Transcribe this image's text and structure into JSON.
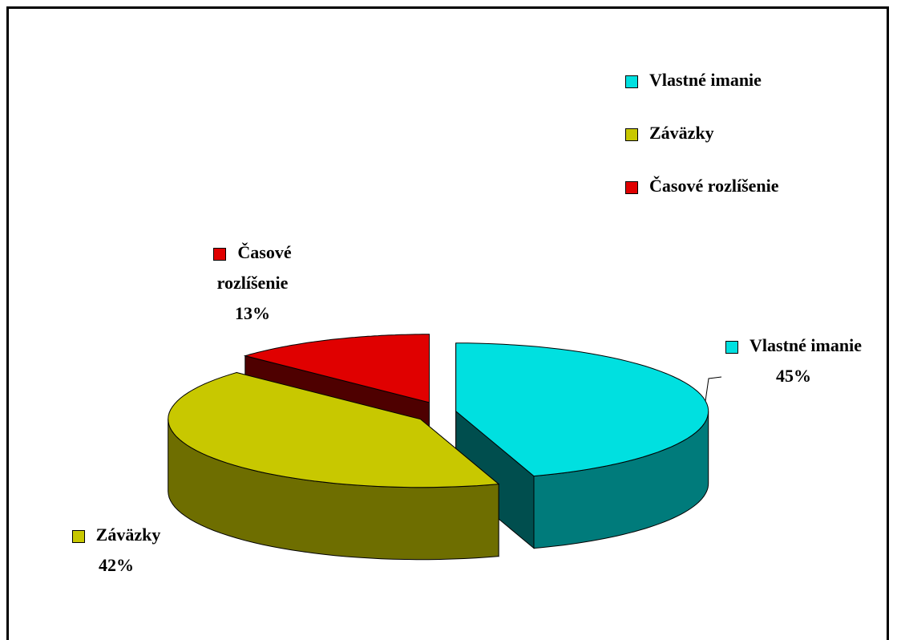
{
  "chart_data": {
    "type": "pie",
    "categories": [
      "Vlastné imanie",
      "Záväzky",
      "Časové rozlíšenie"
    ],
    "values": [
      45,
      42,
      13
    ],
    "value_labels": [
      "45%",
      "42%",
      "13%"
    ],
    "colors": [
      "#00e0e0",
      "#c8c800",
      "#e00000"
    ],
    "legend": "top-right"
  }
}
